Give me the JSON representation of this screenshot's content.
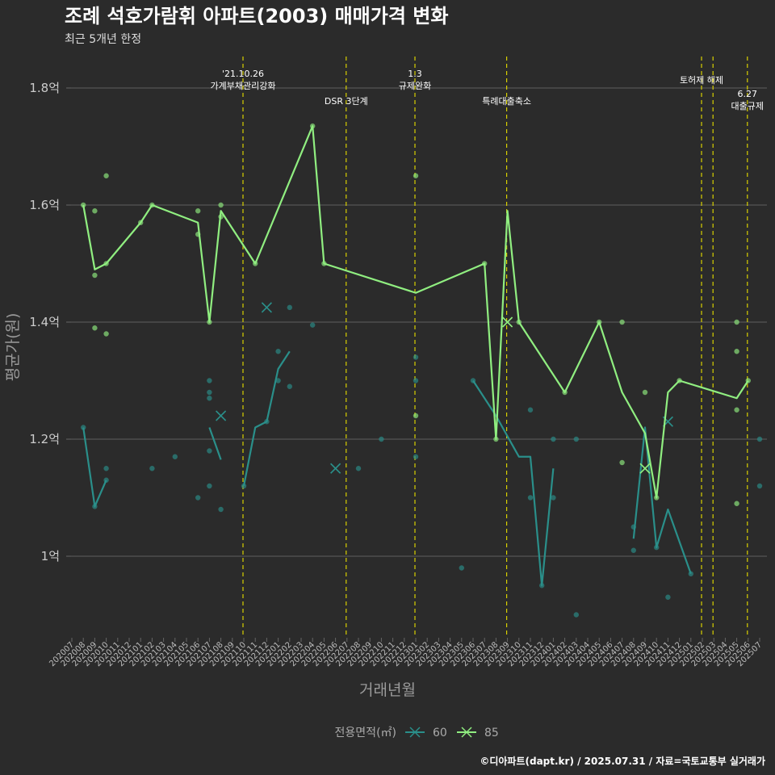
{
  "chart_data": {
    "type": "line",
    "title": "조례 석호가람휘 아파트(2003) 매매가격 변화",
    "subtitle": "최근 5개년 한정",
    "xlabel": "거래년월",
    "ylabel": "평균가(원)",
    "caption": "©디아파트(dapt.kr) / 2025.07.31 / 자료=국토교통부 실거래가",
    "legend_title": "전용면적(㎡)",
    "legend_position": "bottom",
    "grid": true,
    "ylim": [
      0.85,
      1.86
    ],
    "yticks": [
      {
        "v": 1.0,
        "label": "1억"
      },
      {
        "v": 1.2,
        "label": "1.2억"
      },
      {
        "v": 1.4,
        "label": "1.4억"
      },
      {
        "v": 1.6,
        "label": "1.6억"
      },
      {
        "v": 1.8,
        "label": "1.8억"
      }
    ],
    "categories": [
      "202007",
      "202008",
      "202009",
      "202010",
      "202011",
      "202012",
      "202101",
      "202102",
      "202103",
      "202104",
      "202105",
      "202106",
      "202107",
      "202108",
      "202109",
      "202110",
      "202111",
      "202112",
      "202201",
      "202202",
      "202203",
      "202204",
      "202205",
      "202206",
      "202207",
      "202208",
      "202209",
      "202210",
      "202211",
      "202212",
      "202301",
      "202302",
      "202303",
      "202304",
      "202305",
      "202306",
      "202307",
      "202308",
      "202309",
      "202310",
      "202311",
      "202312",
      "202401",
      "202402",
      "202403",
      "202404",
      "202405",
      "202406",
      "202407",
      "202408",
      "202409",
      "202410",
      "202411",
      "202412",
      "202501",
      "202502",
      "202503",
      "202504",
      "202505",
      "202506",
      "202507"
    ],
    "events": [
      {
        "date": "202110",
        "label": [
          "'21.10.26",
          "가계부채관리강화"
        ],
        "level": 0
      },
      {
        "date": "202207",
        "label": [
          "DSR 3단계"
        ],
        "level": 1
      },
      {
        "date": "202301",
        "label": [
          "1.3",
          "규제완화"
        ],
        "level": 0
      },
      {
        "date": "202309",
        "label": [
          "특례대출축소"
        ],
        "level": 1
      },
      {
        "date": "202502",
        "label": [
          "토허제 해제"
        ],
        "level": 0
      },
      {
        "date": "202503",
        "label": [],
        "level": 0
      },
      {
        "date": "202506",
        "label": [
          "6.27",
          "대출규제"
        ],
        "level": 2
      }
    ],
    "series": [
      {
        "name": "60",
        "color": "#2a8f8a",
        "line": [
          {
            "x": "202008",
            "y": 1.22
          },
          {
            "x": "202009",
            "y": 1.085
          },
          {
            "x": "202010",
            "y": 1.13
          },
          null,
          {
            "x": "202106",
            "y": 1.1
          },
          null,
          {
            "x": "202107",
            "y": 1.22
          },
          {
            "x": "202108",
            "y": 1.165
          },
          null,
          {
            "x": "202110",
            "y": 1.12
          },
          {
            "x": "202111",
            "y": 1.22
          },
          {
            "x": "202112",
            "y": 1.23
          },
          {
            "x": "202201",
            "y": 1.32
          },
          {
            "x": "202202",
            "y": 1.35
          },
          null,
          {
            "x": "202306",
            "y": 1.3
          },
          {
            "x": "202308",
            "y": 1.24
          },
          {
            "x": "202310",
            "y": 1.17
          },
          {
            "x": "202311",
            "y": 1.17
          },
          {
            "x": "202312",
            "y": 0.95
          },
          {
            "x": "202401",
            "y": 1.15
          },
          null,
          {
            "x": "202408",
            "y": 1.03
          },
          {
            "x": "202409",
            "y": 1.22
          },
          {
            "x": "202410",
            "y": 1.015
          },
          {
            "x": "202411",
            "y": 1.08
          },
          {
            "x": "202501",
            "y": 0.97
          }
        ],
        "points": [
          {
            "x": "202008",
            "y": 1.22
          },
          {
            "x": "202009",
            "y": 1.085
          },
          {
            "x": "202010",
            "y": 1.15
          },
          {
            "x": "202010",
            "y": 1.13
          },
          {
            "x": "202102",
            "y": 1.15
          },
          {
            "x": "202104",
            "y": 1.17
          },
          {
            "x": "202106",
            "y": 1.1
          },
          {
            "x": "202107",
            "y": 1.3
          },
          {
            "x": "202107",
            "y": 1.28
          },
          {
            "x": "202107",
            "y": 1.27
          },
          {
            "x": "202107",
            "y": 1.18
          },
          {
            "x": "202107",
            "y": 1.12
          },
          {
            "x": "202108",
            "y": 1.08
          },
          {
            "x": "202110",
            "y": 1.12
          },
          {
            "x": "202112",
            "y": 1.23
          },
          {
            "x": "202201",
            "y": 1.35
          },
          {
            "x": "202201",
            "y": 1.3
          },
          {
            "x": "202202",
            "y": 1.425
          },
          {
            "x": "202202",
            "y": 1.29
          },
          {
            "x": "202204",
            "y": 1.395
          },
          {
            "x": "202208",
            "y": 1.15
          },
          {
            "x": "202210",
            "y": 1.2
          },
          {
            "x": "202301",
            "y": 1.34
          },
          {
            "x": "202301",
            "y": 1.3
          },
          {
            "x": "202301",
            "y": 1.17
          },
          {
            "x": "202305",
            "y": 0.98
          },
          {
            "x": "202306",
            "y": 1.3
          },
          {
            "x": "202311",
            "y": 1.25
          },
          {
            "x": "202311",
            "y": 1.1
          },
          {
            "x": "202312",
            "y": 0.95
          },
          {
            "x": "202401",
            "y": 1.2
          },
          {
            "x": "202401",
            "y": 1.1
          },
          {
            "x": "202403",
            "y": 1.2
          },
          {
            "x": "202403",
            "y": 0.9
          },
          {
            "x": "202408",
            "y": 1.05
          },
          {
            "x": "202408",
            "y": 1.01
          },
          {
            "x": "202410",
            "y": 1.015
          },
          {
            "x": "202411",
            "y": 0.93
          },
          {
            "x": "202501",
            "y": 0.97
          },
          {
            "x": "202507",
            "y": 1.2
          },
          {
            "x": "202507",
            "y": 1.12
          }
        ],
        "crosses": [
          {
            "x": "202112",
            "y": 1.425
          },
          {
            "x": "202108",
            "y": 1.24
          },
          {
            "x": "202206",
            "y": 1.15
          },
          {
            "x": "202411",
            "y": 1.23
          }
        ]
      },
      {
        "name": "85",
        "color": "#90ee80",
        "line": [
          {
            "x": "202008",
            "y": 1.6
          },
          {
            "x": "202009",
            "y": 1.49
          },
          {
            "x": "202010",
            "y": 1.5
          },
          {
            "x": "202101",
            "y": 1.57
          },
          {
            "x": "202102",
            "y": 1.6
          },
          {
            "x": "202106",
            "y": 1.57
          },
          {
            "x": "202107",
            "y": 1.4
          },
          {
            "x": "202108",
            "y": 1.59
          },
          {
            "x": "202111",
            "y": 1.5
          },
          {
            "x": "202204",
            "y": 1.735
          },
          {
            "x": "202205",
            "y": 1.5
          },
          {
            "x": "202301",
            "y": 1.45
          },
          {
            "x": "202307",
            "y": 1.5
          },
          {
            "x": "202308",
            "y": 1.2
          },
          {
            "x": "202309",
            "y": 1.59
          },
          {
            "x": "202310",
            "y": 1.4
          },
          {
            "x": "202402",
            "y": 1.28
          },
          {
            "x": "202405",
            "y": 1.4
          },
          {
            "x": "202407",
            "y": 1.28
          },
          {
            "x": "202409",
            "y": 1.21
          },
          {
            "x": "202410",
            "y": 1.1
          },
          {
            "x": "202411",
            "y": 1.28
          },
          {
            "x": "202412",
            "y": 1.3
          },
          {
            "x": "202505",
            "y": 1.27
          },
          {
            "x": "202506",
            "y": 1.3
          }
        ],
        "points": [
          {
            "x": "202008",
            "y": 1.6
          },
          {
            "x": "202009",
            "y": 1.59
          },
          {
            "x": "202009",
            "y": 1.48
          },
          {
            "x": "202009",
            "y": 1.39
          },
          {
            "x": "202010",
            "y": 1.65
          },
          {
            "x": "202010",
            "y": 1.5
          },
          {
            "x": "202010",
            "y": 1.38
          },
          {
            "x": "202101",
            "y": 1.57
          },
          {
            "x": "202102",
            "y": 1.6
          },
          {
            "x": "202106",
            "y": 1.59
          },
          {
            "x": "202106",
            "y": 1.55
          },
          {
            "x": "202107",
            "y": 1.4
          },
          {
            "x": "202108",
            "y": 1.6
          },
          {
            "x": "202108",
            "y": 1.58
          },
          {
            "x": "202111",
            "y": 1.5
          },
          {
            "x": "202204",
            "y": 1.735
          },
          {
            "x": "202205",
            "y": 1.5
          },
          {
            "x": "202301",
            "y": 1.65
          },
          {
            "x": "202301",
            "y": 1.24
          },
          {
            "x": "202307",
            "y": 1.5
          },
          {
            "x": "202308",
            "y": 1.2
          },
          {
            "x": "202310",
            "y": 1.4
          },
          {
            "x": "202402",
            "y": 1.28
          },
          {
            "x": "202405",
            "y": 1.4
          },
          {
            "x": "202407",
            "y": 1.4
          },
          {
            "x": "202407",
            "y": 1.16
          },
          {
            "x": "202409",
            "y": 1.28
          },
          {
            "x": "202410",
            "y": 1.1
          },
          {
            "x": "202412",
            "y": 1.3
          },
          {
            "x": "202505",
            "y": 1.4
          },
          {
            "x": "202505",
            "y": 1.35
          },
          {
            "x": "202505",
            "y": 1.25
          },
          {
            "x": "202505",
            "y": 1.09
          },
          {
            "x": "202506",
            "y": 1.3
          }
        ],
        "crosses": [
          {
            "x": "202309",
            "y": 1.4
          },
          {
            "x": "202409",
            "y": 1.15
          }
        ]
      }
    ]
  }
}
